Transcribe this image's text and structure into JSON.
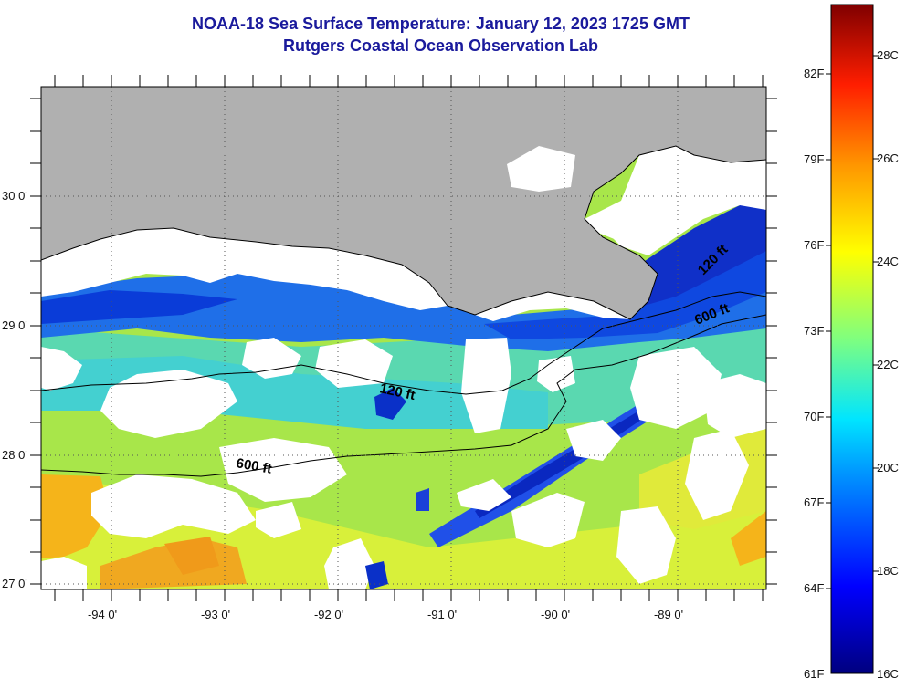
{
  "title": {
    "line1": "NOAA-18 Sea Surface Temperature:  January 12, 2023 1725 GMT",
    "line2": "Rutgers Coastal Ocean Observation Lab"
  },
  "map": {
    "y_ticks": [
      "30 0'",
      "29 0'",
      "28 0'",
      "27 0'"
    ],
    "x_ticks": [
      "-94 0'",
      "-93 0'",
      "-92 0'",
      "-91 0'",
      "-90 0'",
      "-89 0'"
    ],
    "contour_labels": [
      "120 ft",
      "600 ft",
      "120 ft",
      "600 ft"
    ],
    "colors": {
      "land": "#b0b0b0",
      "cloud": "#ffffff",
      "grid": "#555555"
    }
  },
  "colorbar": {
    "fahrenheit": [
      "82F",
      "79F",
      "76F",
      "73F",
      "70F",
      "67F",
      "64F",
      "61F"
    ],
    "celsius": [
      "28C",
      "26C",
      "24C",
      "22C",
      "20C",
      "18C",
      "16C"
    ],
    "range_c": [
      16,
      29.2
    ]
  }
}
